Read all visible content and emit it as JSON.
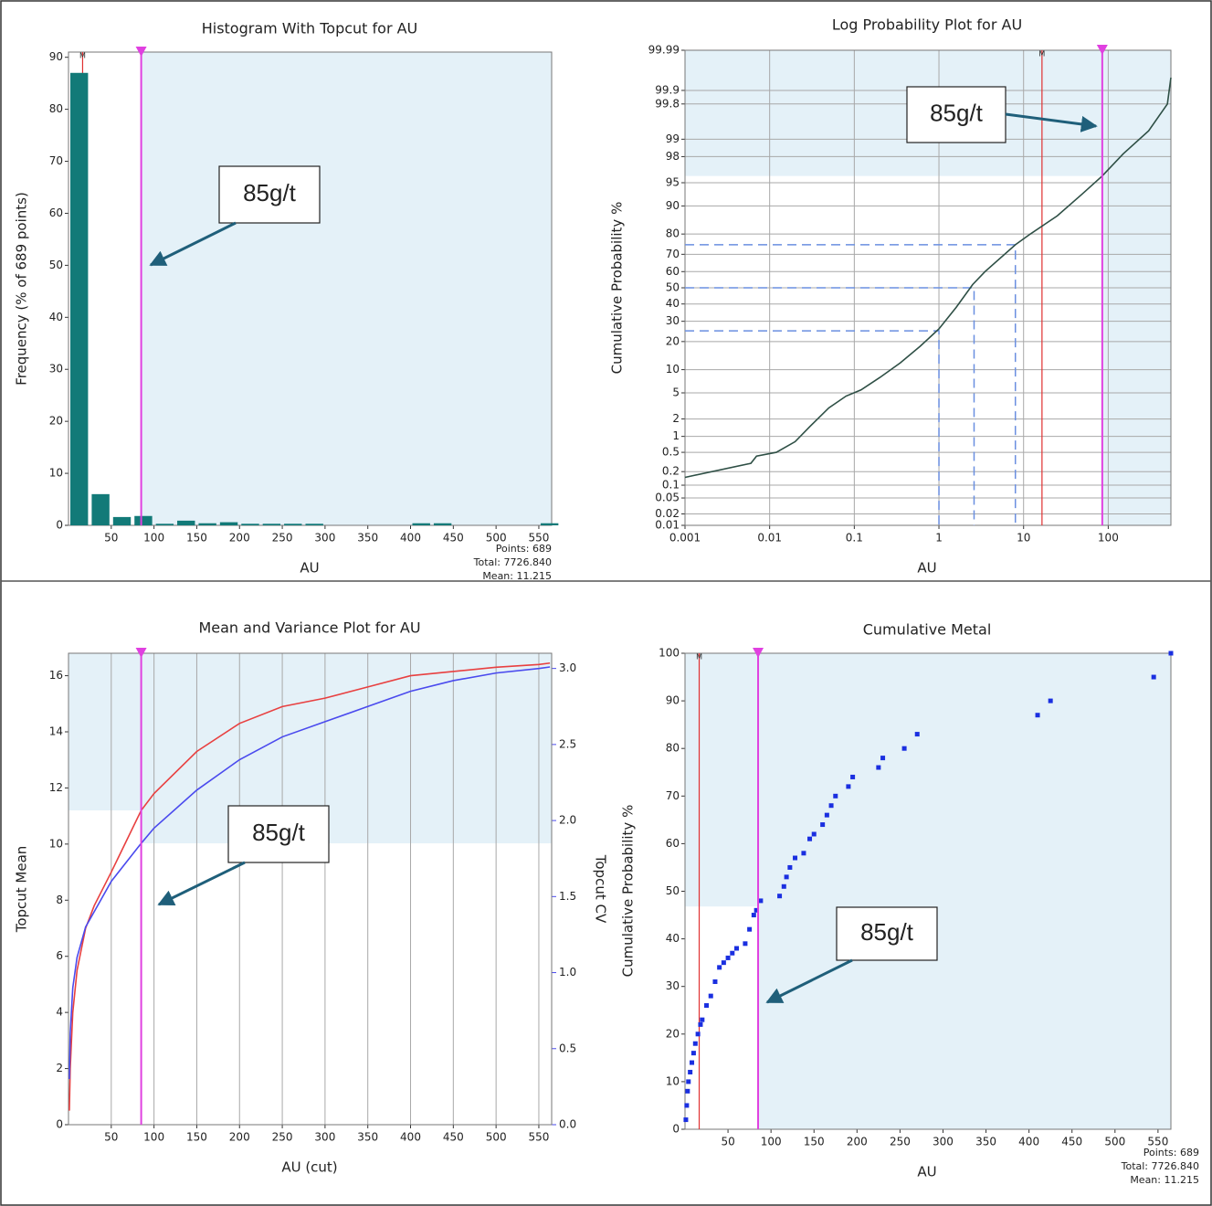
{
  "chart_data": [
    {
      "type": "histogram",
      "title": "Histogram With Topcut for AU",
      "xlabel": "AU",
      "ylabel": "Frequency (% of 689 points)",
      "bins": [
        0,
        25,
        50,
        75,
        100,
        125,
        150,
        175,
        200,
        225,
        250,
        275,
        300,
        325,
        350,
        375,
        400,
        425,
        450,
        475,
        500,
        525,
        550,
        575
      ],
      "values": [
        87,
        6,
        1.6,
        1.8,
        0.3,
        0.9,
        0.4,
        0.6,
        0.3,
        0.3,
        0.3,
        0.3,
        0,
        0,
        0,
        0,
        0.4,
        0.4,
        0,
        0,
        0,
        0,
        0.4
      ],
      "color": "#127a78",
      "xlim": [
        0,
        565
      ],
      "xticks": [
        50,
        100,
        150,
        200,
        250,
        300,
        350,
        400,
        450,
        500,
        550
      ],
      "ylim": [
        0,
        91
      ],
      "yticks": [
        0,
        10,
        20,
        30,
        40,
        50,
        60,
        70,
        80,
        90
      ],
      "topcut": 85,
      "topcut_color": "#e040e0",
      "markers": [
        {
          "label": "M",
          "value": 16.5,
          "color": "#e03030"
        }
      ],
      "annotation": "85g/t",
      "stats": [
        "Points: 689",
        "Total: 7726.840"
      ],
      "mean_label": "Mean:",
      "mean": 11.215
    },
    {
      "type": "line",
      "title": "Log Probability Plot for AU",
      "xlabel": "AU",
      "ylabel": "Cumulative Probability %",
      "xlog": true,
      "yscale": "probability",
      "grid": "both",
      "x": [
        0.001,
        0.006,
        0.007,
        0.012,
        0.02,
        0.03,
        0.05,
        0.08,
        0.12,
        0.2,
        0.35,
        0.6,
        1,
        1.6,
        2.5,
        3.5,
        8,
        12,
        25,
        50,
        85,
        150,
        300,
        500,
        550
      ],
      "series": [
        {
          "color": "#2e4f45",
          "values": [
            0.15,
            0.3,
            0.42,
            0.5,
            0.8,
            1.5,
            3,
            4.5,
            5.5,
            8,
            12,
            18,
            26,
            38,
            52,
            60,
            75,
            80,
            87,
            93,
            96,
            98.2,
            99.3,
            99.8,
            99.95
          ]
        }
      ],
      "quartile_lines": [
        {
          "x": 1,
          "y": 25
        },
        {
          "x": 2.6,
          "y": 50
        },
        {
          "x": 8,
          "y": 75
        }
      ],
      "xlim": [
        0.001,
        550
      ],
      "xticks": [
        0.001,
        0.01,
        0.1,
        1,
        10,
        100
      ],
      "ylim": [
        0.01,
        99.99
      ],
      "yticks": [
        0.01,
        0.02,
        0.05,
        0.1,
        0.2,
        0.5,
        1,
        2,
        5,
        10,
        20,
        30,
        40,
        50,
        60,
        70,
        80,
        90,
        95,
        98,
        99,
        99.8,
        99.9,
        99.99
      ],
      "topcut": 85,
      "topcut_color": "#e040e0",
      "markers": [
        {
          "label": "M",
          "value": 16.5,
          "color": "#e03030"
        }
      ],
      "annotation": "85g/t"
    },
    {
      "type": "line",
      "title": "Mean and Variance Plot for AU",
      "xlabel": "AU (cut)",
      "ylabel": "Topcut Mean",
      "y2label": "Topcut CV",
      "grid": "x",
      "x": [
        1,
        2,
        5,
        10,
        20,
        30,
        50,
        85,
        100,
        150,
        200,
        250,
        300,
        350,
        400,
        450,
        500,
        550,
        563
      ],
      "series": [
        {
          "color": "#e84040",
          "values": [
            0.5,
            2,
            4,
            5.5,
            7,
            7.8,
            9,
            11.2,
            11.8,
            13.3,
            14.3,
            14.9,
            15.2,
            15.6,
            16,
            16.15,
            16.3,
            16.4,
            16.45
          ]
        },
        {
          "color": "#4a4aee",
          "axis": "y2",
          "values": [
            0.3,
            0.6,
            0.9,
            1.1,
            1.3,
            1.4,
            1.6,
            1.85,
            1.95,
            2.2,
            2.4,
            2.55,
            2.65,
            2.75,
            2.85,
            2.92,
            2.97,
            3.0,
            3.01
          ]
        }
      ],
      "xlim": [
        0,
        565
      ],
      "xticks": [
        50,
        100,
        150,
        200,
        250,
        300,
        350,
        400,
        450,
        500,
        550
      ],
      "ylim": [
        0,
        16.8
      ],
      "yticks": [
        0,
        2,
        4,
        6,
        8,
        10,
        12,
        14,
        16
      ],
      "y2lim": [
        0,
        3.1
      ],
      "y2ticks": [
        {
          "value": 0,
          "label": "0.0"
        },
        {
          "value": 0.5,
          "label": "0.5"
        },
        {
          "value": 1,
          "label": "1.0"
        },
        {
          "value": 1.5,
          "label": "1.5"
        },
        {
          "value": 2,
          "label": "2.0"
        },
        {
          "value": 2.5,
          "label": "2.5"
        },
        {
          "value": 3,
          "label": "3.0"
        }
      ],
      "topcut": 85,
      "topcut_color": "#e040e0",
      "annotation": "85g/t"
    },
    {
      "type": "scatter",
      "title": "Cumulative Metal",
      "xlabel": "AU",
      "ylabel": "Cumulative Probability %",
      "x": [
        1,
        2,
        3,
        4,
        6,
        8,
        10,
        12,
        15,
        18,
        20,
        25,
        30,
        35,
        40,
        45,
        50,
        55,
        60,
        70,
        75,
        80,
        83,
        88,
        110,
        115,
        118,
        122,
        128,
        138,
        145,
        150,
        160,
        165,
        170,
        175,
        190,
        195,
        225,
        230,
        255,
        270,
        410,
        425,
        545,
        565
      ],
      "values": [
        2,
        5,
        8,
        10,
        12,
        14,
        16,
        18,
        20,
        22,
        23,
        26,
        28,
        31,
        34,
        35,
        36,
        37,
        38,
        39,
        42,
        45,
        46,
        48,
        49,
        51,
        53,
        55,
        57,
        58,
        61,
        62,
        64,
        66,
        68,
        70,
        72,
        74,
        76,
        78,
        80,
        83,
        87,
        90,
        95,
        100
      ],
      "color": "#1a2fe0",
      "xlim": [
        0,
        565
      ],
      "xticks": [
        50,
        100,
        150,
        200,
        250,
        300,
        350,
        400,
        450,
        500,
        550
      ],
      "ylim": [
        0,
        100
      ],
      "yticks": [
        0,
        10,
        20,
        30,
        40,
        50,
        60,
        70,
        80,
        90,
        100
      ],
      "topcut": 85,
      "topcut_color": "#e040e0",
      "markers": [
        {
          "label": "M",
          "value": 16.5,
          "color": "#e03030"
        }
      ],
      "annotation": "85g/t",
      "stats": [
        "Points: 689",
        "Total: 7726.840"
      ],
      "mean_label": "Mean:",
      "mean": 11.215
    }
  ]
}
